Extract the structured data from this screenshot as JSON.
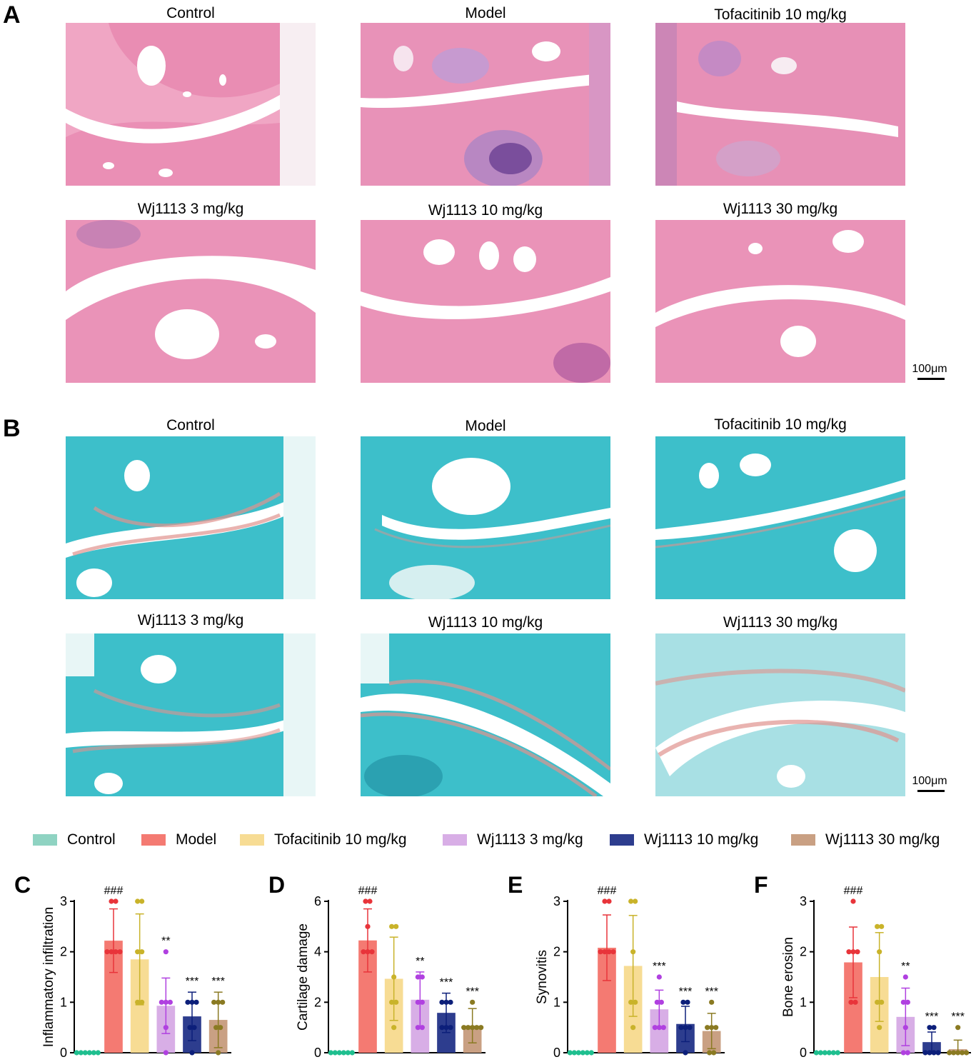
{
  "panels": {
    "A": {
      "letter": "A",
      "titles": [
        "Control",
        "Model",
        "Tofacitinib 10 mg/kg",
        "Wj1113 3 mg/kg",
        "Wj1113 10 mg/kg",
        "Wj1113 30 mg/kg"
      ],
      "scale_label": "100μm",
      "stain": "H&E"
    },
    "B": {
      "letter": "B",
      "titles": [
        "Control",
        "Model",
        "Tofacitinib 10 mg/kg",
        "Wj1113 3 mg/kg",
        "Wj1113 10 mg/kg",
        "Wj1113 30 mg/kg"
      ],
      "scale_label": "100μm",
      "stain": "Safranin O-Fast Green"
    }
  },
  "legend": [
    {
      "label": "Control",
      "color": "#8fd3c2"
    },
    {
      "label": "Model",
      "color": "#f47a72"
    },
    {
      "label": "Tofacitinib 10 mg/kg",
      "color": "#f7dc94"
    },
    {
      "label": "Wj1113 3 mg/kg",
      "color": "#d8aee6"
    },
    {
      "label": "Wj1113 10 mg/kg",
      "color": "#2d3d8e"
    },
    {
      "label": "Wj1113 30 mg/kg",
      "color": "#c9a083"
    }
  ],
  "dot_colors": [
    "#1fbf8f",
    "#e8343a",
    "#c9b32a",
    "#b040e0",
    "#0c1f7a",
    "#8a7a22"
  ],
  "chart_data": [
    {
      "letter": "C",
      "type": "bar",
      "ylabel": "Inflammatory infiltration",
      "ylim": [
        0,
        3
      ],
      "yticks": [
        "0",
        "1",
        "2",
        "3"
      ],
      "categories": [
        "Control",
        "Model",
        "Tofacitinib 10 mg/kg",
        "Wj1113 3 mg/kg",
        "Wj1113 10 mg/kg",
        "Wj1113 30 mg/kg"
      ],
      "values": [
        0,
        2.22,
        1.85,
        0.93,
        0.72,
        0.65
      ],
      "errors": [
        0,
        0.63,
        0.9,
        0.55,
        0.48,
        0.55
      ],
      "points": [
        [
          0,
          0,
          0,
          0,
          0,
          0
        ],
        [
          3,
          3,
          2,
          2,
          2,
          2
        ],
        [
          3,
          3,
          2,
          2,
          1,
          1
        ],
        [
          2,
          1,
          1,
          1,
          0.5,
          0
        ],
        [
          1,
          1,
          1,
          0.5,
          0.5,
          0
        ],
        [
          1,
          1,
          1,
          0.5,
          0.5,
          0
        ]
      ],
      "significance": [
        "",
        "###",
        "",
        "**",
        "***",
        "***"
      ]
    },
    {
      "letter": "D",
      "type": "bar",
      "ylabel": "Cartilage damage",
      "ylim": [
        0,
        6
      ],
      "yticks": [
        "0",
        "2",
        "4",
        "6"
      ],
      "categories": [
        "Control",
        "Model",
        "Tofacitinib 10 mg/kg",
        "Wj1113 3 mg/kg",
        "Wj1113 10 mg/kg",
        "Wj1113 30 mg/kg"
      ],
      "values": [
        0,
        4.45,
        2.93,
        2.1,
        1.58,
        1.07
      ],
      "errors": [
        0,
        1.25,
        1.65,
        1.1,
        0.78,
        0.68
      ],
      "points": [
        [
          0,
          0,
          0,
          0,
          0,
          0
        ],
        [
          6,
          6,
          5,
          4,
          4,
          4
        ],
        [
          5,
          5,
          3,
          2,
          2,
          1
        ],
        [
          3,
          3,
          2,
          2,
          1,
          1
        ],
        [
          2,
          2,
          2,
          1,
          1,
          1
        ],
        [
          2,
          1,
          1,
          1,
          1,
          1
        ]
      ],
      "significance": [
        "",
        "###",
        "",
        "**",
        "***",
        "***"
      ]
    },
    {
      "letter": "E",
      "type": "bar",
      "ylabel": "Synovitis",
      "ylim": [
        0,
        3
      ],
      "yticks": [
        "0",
        "1",
        "2",
        "3"
      ],
      "categories": [
        "Control",
        "Model",
        "Tofacitinib 10 mg/kg",
        "Wj1113 3 mg/kg",
        "Wj1113 10 mg/kg",
        "Wj1113 30 mg/kg"
      ],
      "values": [
        0,
        2.08,
        1.72,
        0.86,
        0.57,
        0.43
      ],
      "errors": [
        0,
        0.65,
        1.0,
        0.38,
        0.35,
        0.35
      ],
      "points": [
        [
          0,
          0,
          0,
          0,
          0,
          0
        ],
        [
          3,
          3,
          2,
          2,
          2,
          2
        ],
        [
          3,
          3,
          2,
          1,
          1,
          0.5
        ],
        [
          1.5,
          1,
          1,
          0.5,
          0.5,
          0.5
        ],
        [
          1,
          1,
          0.5,
          0.5,
          0.5,
          0
        ],
        [
          1,
          0.5,
          0.5,
          0.5,
          0,
          0
        ]
      ],
      "significance": [
        "",
        "###",
        "",
        "***",
        "***",
        "***"
      ]
    },
    {
      "letter": "F",
      "type": "bar",
      "ylabel": "Bone erosion",
      "ylim": [
        0,
        3
      ],
      "yticks": [
        "0",
        "1",
        "2",
        "3"
      ],
      "categories": [
        "Control",
        "Model",
        "Tofacitinib 10 mg/kg",
        "Wj1113 3 mg/kg",
        "Wj1113 10 mg/kg",
        "Wj1113 30 mg/kg"
      ],
      "values": [
        0,
        1.79,
        1.5,
        0.71,
        0.21,
        0.07
      ],
      "errors": [
        0,
        0.7,
        0.88,
        0.57,
        0.2,
        0.18
      ],
      "points": [
        [
          0,
          0,
          0,
          0,
          0,
          0
        ],
        [
          3,
          2,
          2,
          2,
          1,
          1
        ],
        [
          2.5,
          2.5,
          2,
          1,
          1,
          0.5
        ],
        [
          1.5,
          1,
          1,
          0.5,
          0,
          0
        ],
        [
          0.5,
          0.5,
          0,
          0,
          0,
          0
        ],
        [
          0.5,
          0,
          0,
          0,
          0,
          0
        ]
      ],
      "significance": [
        "",
        "###",
        "",
        "**",
        "***",
        "***"
      ]
    }
  ]
}
